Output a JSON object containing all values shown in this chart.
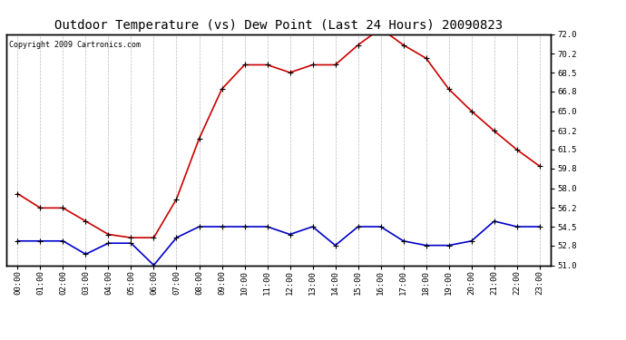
{
  "title": "Outdoor Temperature (vs) Dew Point (Last 24 Hours) 20090823",
  "copyright": "Copyright 2009 Cartronics.com",
  "hours": [
    "00:00",
    "01:00",
    "02:00",
    "03:00",
    "04:00",
    "05:00",
    "06:00",
    "07:00",
    "08:00",
    "09:00",
    "10:00",
    "11:00",
    "12:00",
    "13:00",
    "14:00",
    "15:00",
    "16:00",
    "17:00",
    "18:00",
    "19:00",
    "20:00",
    "21:00",
    "22:00",
    "23:00"
  ],
  "temp": [
    57.5,
    56.2,
    56.2,
    55.0,
    53.8,
    53.5,
    53.5,
    57.0,
    62.5,
    67.0,
    69.2,
    69.2,
    68.5,
    69.2,
    69.2,
    71.0,
    72.5,
    71.0,
    69.8,
    67.0,
    65.0,
    63.2,
    61.5,
    60.0
  ],
  "dew": [
    53.2,
    53.2,
    53.2,
    52.0,
    53.0,
    53.0,
    51.0,
    53.5,
    54.5,
    54.5,
    54.5,
    54.5,
    53.8,
    54.5,
    52.8,
    54.5,
    54.5,
    53.2,
    52.8,
    52.8,
    53.2,
    55.0,
    54.5,
    54.5
  ],
  "temp_color": "#cc0000",
  "dew_color": "#0000cc",
  "bg_color": "#ffffff",
  "plot_bg": "#ffffff",
  "grid_color": "#aaaaaa",
  "yticks": [
    51.0,
    52.8,
    54.5,
    56.2,
    58.0,
    59.8,
    61.5,
    63.2,
    65.0,
    66.8,
    68.5,
    70.2,
    72.0
  ],
  "ymin": 51.0,
  "ymax": 72.0,
  "title_fontsize": 10,
  "copyright_fontsize": 6,
  "tick_fontsize": 6.5,
  "marker": "+",
  "marker_size": 4,
  "marker_color": "#000000",
  "line_width": 1.2
}
